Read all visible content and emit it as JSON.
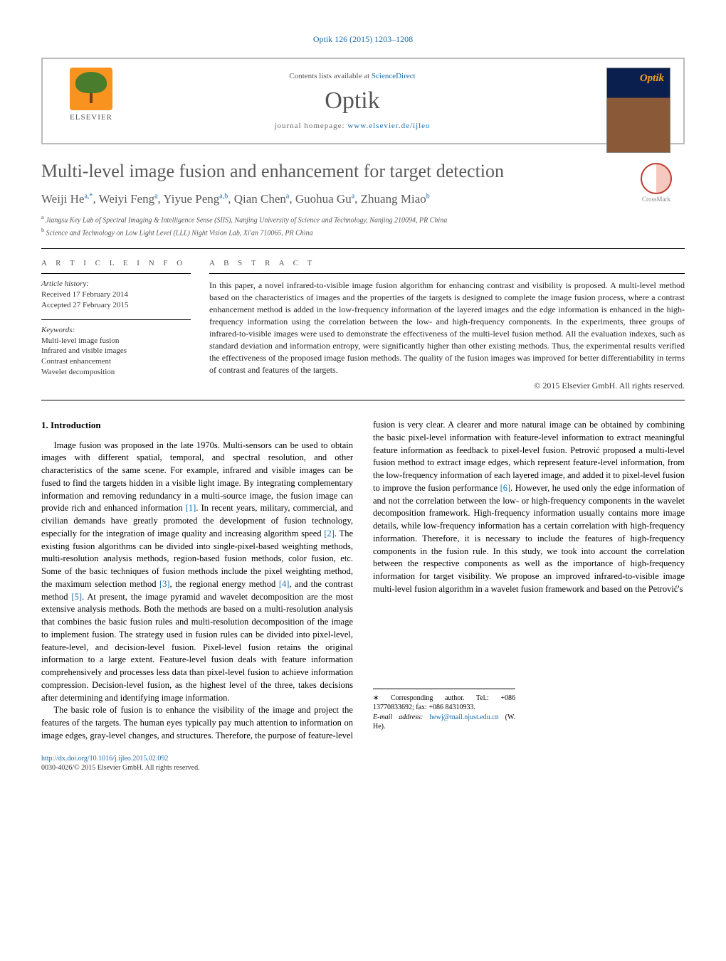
{
  "journal_ref": {
    "name_link": "Optik",
    "citation": "126 (2015) 1203–1208"
  },
  "header": {
    "contents_text": "Contents lists available at ",
    "contents_link": "ScienceDirect",
    "journal_name": "Optik",
    "homepage_label": "journal homepage: ",
    "homepage_url": "www.elsevier.de/ijleo",
    "publisher_name": "ELSEVIER"
  },
  "crossmark_label": "CrossMark",
  "title": "Multi-level image fusion and enhancement for target detection",
  "authors": [
    {
      "name": "Weiji He",
      "marks": "a,*"
    },
    {
      "name": "Weiyi Feng",
      "marks": "a"
    },
    {
      "name": "Yiyue Peng",
      "marks": "a,b"
    },
    {
      "name": "Qian Chen",
      "marks": "a"
    },
    {
      "name": "Guohua Gu",
      "marks": "a"
    },
    {
      "name": "Zhuang Miao",
      "marks": "b"
    }
  ],
  "affiliations": {
    "a": "Jiangsu Key Lab of Spectral Imaging & Intelligence Sense (SIIS), Nanjing University of Science and Technology, Nanjing 210094, PR China",
    "b": "Science and Technology on Low Light Level (LLL) Night Vision Lab, Xi'an 710065, PR China"
  },
  "article_info": {
    "heading": "A R T I C L E   I N F O",
    "history_label": "Article history:",
    "received": "Received 17 February 2014",
    "accepted": "Accepted 27 February 2015",
    "keywords_label": "Keywords:",
    "keywords": [
      "Multi-level image fusion",
      "Infrared and visible images",
      "Contrast enhancement",
      "Wavelet decomposition"
    ]
  },
  "abstract": {
    "heading": "A B S T R A C T",
    "text": "In this paper, a novel infrared-to-visible image fusion algorithm for enhancing contrast and visibility is proposed. A multi-level method based on the characteristics of images and the properties of the targets is designed to complete the image fusion process, where a contrast enhancement method is added in the low-frequency information of the layered images and the edge information is enhanced in the high-frequency information using the correlation between the low- and high-frequency components. In the experiments, three groups of infrared-to-visible images were used to demonstrate the effectiveness of the multi-level fusion method. All the evaluation indexes, such as standard deviation and information entropy, were significantly higher than other existing methods. Thus, the experimental results verified the effectiveness of the proposed image fusion methods. The quality of the fusion images was improved for better differentiability in terms of contrast and features of the targets.",
    "copyright": "© 2015 Elsevier GmbH. All rights reserved."
  },
  "intro": {
    "heading": "1.  Introduction",
    "para1a": "Image fusion was proposed in the late 1970s. Multi-sensors can be used to obtain images with different spatial, temporal, and spectral resolution, and other characteristics of the same scene. For example, infrared and visible images can be fused to find the targets hidden in a visible light image. By integrating complementary information and removing redundancy in a multi-source image, the fusion image can provide rich and enhanced information ",
    "ref1": "[1]",
    "para1b": ". In recent years, military, commercial, and civilian demands have greatly promoted the development of fusion technology, especially for the integration of image quality and increasing algorithm speed ",
    "ref2": "[2]",
    "para1c": ". The existing fusion algorithms can be divided into single-pixel-based weighting methods, multi-resolution analysis methods, region-based fusion methods, color fusion, etc. Some of the basic techniques of fusion methods include the pixel weighting method, the maximum selection method ",
    "ref3": "[3]",
    "para1d": ", the regional energy method ",
    "ref4": "[4]",
    "para1e": ", and the contrast method ",
    "ref5": "[5]",
    "para1f": ". At present, the image pyramid and wavelet decomposition are the most extensive analysis methods. Both the methods are based on a multi-resolution analysis that combines the basic fusion rules and multi-resolution decomposition of the image to implement fusion. The strategy used in fusion rules can be divided into pixel-level, feature-level, and ",
    "para2": "decision-level fusion. Pixel-level fusion retains the original information to a large extent. Feature-level fusion deals with feature information comprehensively and processes less data than pixel-level fusion to achieve information compression. Decision-level fusion, as the highest level of the three, takes decisions after determining and identifying image information.",
    "para3a": "The basic role of fusion is to enhance the visibility of the image and project the features of the targets. The human eyes typically pay much attention to information on image edges, gray-level changes, and structures. Therefore, the purpose of feature-level fusion is very clear. A clearer and more natural image can be obtained by combining the basic pixel-level information with feature-level information to extract meaningful feature information as feedback to pixel-level fusion. Petrović proposed a multi-level fusion method to extract image edges, which represent feature-level information, from the low-frequency information of each layered image, and added it to pixel-level fusion to improve the fusion performance ",
    "ref6": "[6]",
    "para3b": ". However, he used only the edge information of and not the correlation between the low- or high-frequency components in the wavelet decomposition framework. High-frequency information usually contains more image details, while low-frequency information has a certain correlation with high-frequency information. Therefore, it is necessary to include the features of high-frequency components in the fusion rule. In this study, we took into account the correlation between the respective components as well as the importance of high-frequency information for target visibility. We propose an improved infrared-to-visible image multi-level fusion algorithm in a wavelet fusion framework and based on the Petrović's"
  },
  "footnote": {
    "corr_label": "∗ Corresponding author. Tel.: +086 13770833692; fax: +086 84310933.",
    "email_label": "E-mail address: ",
    "email": "hewj@mail.njust.edu.cn",
    "email_who": " (W. He)."
  },
  "footer": {
    "doi": "http://dx.doi.org/10.1016/j.ijleo.2015.02.092",
    "issn_line": "0030-4026/© 2015 Elsevier GmbH. All rights reserved."
  },
  "colors": {
    "link": "#1a6ba8",
    "heading_gray": "#5a5a5a",
    "elsevier_orange": "#f7931e"
  }
}
